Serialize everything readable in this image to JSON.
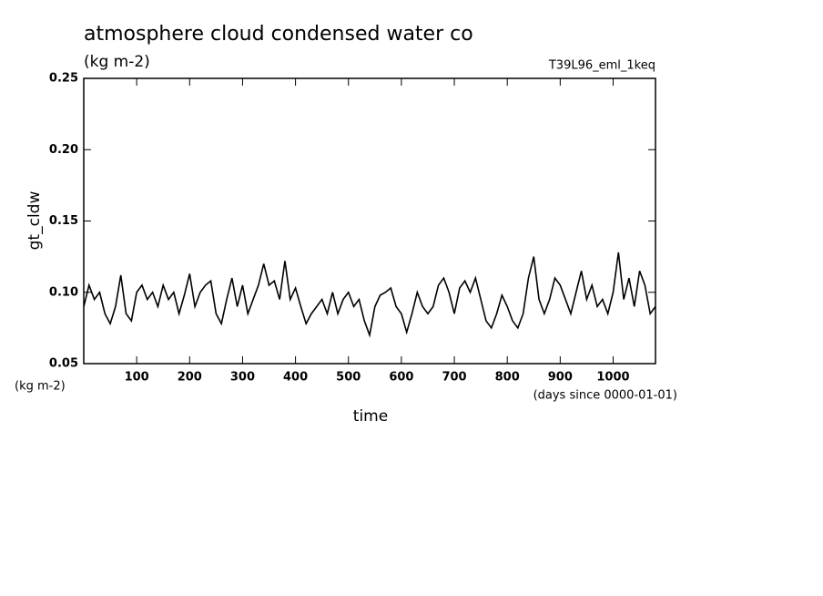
{
  "chart_data": {
    "type": "line",
    "title": "atmosphere cloud condensed water co",
    "subtitle": "(kg m-2)",
    "annotation": "T39L96_eml_1keq",
    "ylabel": "gt_cldw",
    "yunit": "(kg m-2)",
    "xlabel": "time",
    "xunit": "(days since 0000-01-01)",
    "xlim": [
      0,
      1080
    ],
    "ylim": [
      0.05,
      0.25
    ],
    "xticks": [
      100,
      200,
      300,
      400,
      500,
      600,
      700,
      800,
      900,
      1000
    ],
    "yticks": [
      0.05,
      {
        "value": 0.1,
        "label": "0.10"
      },
      0.15,
      {
        "value": 0.2,
        "label": "0.20"
      },
      0.25
    ],
    "x": [
      0,
      10,
      20,
      30,
      40,
      50,
      60,
      70,
      80,
      90,
      100,
      110,
      120,
      130,
      140,
      150,
      160,
      170,
      180,
      190,
      200,
      210,
      220,
      230,
      240,
      250,
      260,
      270,
      280,
      290,
      300,
      310,
      320,
      330,
      340,
      350,
      360,
      370,
      380,
      390,
      400,
      410,
      420,
      430,
      440,
      450,
      460,
      470,
      480,
      490,
      500,
      510,
      520,
      530,
      540,
      550,
      560,
      570,
      580,
      590,
      600,
      610,
      620,
      630,
      640,
      650,
      660,
      670,
      680,
      690,
      700,
      710,
      720,
      730,
      740,
      750,
      760,
      770,
      780,
      790,
      800,
      810,
      820,
      830,
      840,
      850,
      860,
      870,
      880,
      890,
      900,
      910,
      920,
      930,
      940,
      950,
      960,
      970,
      980,
      990,
      1000,
      1010,
      1020,
      1030,
      1040,
      1050,
      1060,
      1070,
      1080
    ],
    "series": [
      {
        "color": "#000000",
        "values": [
          0.09,
          0.105,
          0.095,
          0.1,
          0.085,
          0.078,
          0.09,
          0.112,
          0.085,
          0.08,
          0.1,
          0.105,
          0.095,
          0.1,
          0.09,
          0.105,
          0.095,
          0.1,
          0.085,
          0.098,
          0.113,
          0.09,
          0.1,
          0.105,
          0.108,
          0.085,
          0.078,
          0.095,
          0.11,
          0.09,
          0.105,
          0.085,
          0.095,
          0.105,
          0.12,
          0.105,
          0.108,
          0.095,
          0.122,
          0.095,
          0.103,
          0.09,
          0.078,
          0.085,
          0.09,
          0.095,
          0.085,
          0.1,
          0.085,
          0.095,
          0.1,
          0.09,
          0.095,
          0.08,
          0.07,
          0.09,
          0.098,
          0.1,
          0.103,
          0.09,
          0.085,
          0.072,
          0.085,
          0.1,
          0.09,
          0.085,
          0.09,
          0.105,
          0.11,
          0.1,
          0.085,
          0.103,
          0.108,
          0.1,
          0.11,
          0.095,
          0.08,
          0.075,
          0.085,
          0.098,
          0.09,
          0.08,
          0.075,
          0.085,
          0.11,
          0.125,
          0.095,
          0.085,
          0.095,
          0.11,
          0.105,
          0.095,
          0.085,
          0.1,
          0.115,
          0.095,
          0.105,
          0.09,
          0.095,
          0.085,
          0.1,
          0.128,
          0.095,
          0.11,
          0.09,
          0.115,
          0.105,
          0.085,
          0.09
        ]
      }
    ]
  }
}
